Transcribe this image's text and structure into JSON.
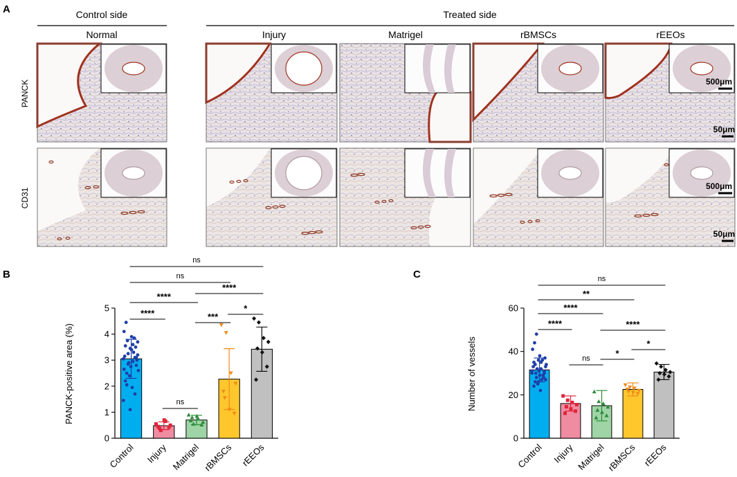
{
  "panels": {
    "a": "A",
    "b": "B",
    "c": "C"
  },
  "headers": {
    "control_side": "Control side",
    "treated_side": "Treated side",
    "groups": [
      "Normal",
      "Injury",
      "Matrigel",
      "rBMSCs",
      "rEEOs"
    ]
  },
  "rows": [
    "PANCK",
    "CD31"
  ],
  "scale_bars": {
    "large": "500μm",
    "small": "50μm"
  },
  "colors": {
    "Control": "#00aeef",
    "Injury": "#f08ca2",
    "Matrigel": "#9ed4a6",
    "rBMSCs": "#ffc72c",
    "rEEOs": "#c0c0c0",
    "Control_pt": "#1f3fa8",
    "Injury_pt": "#e0253a",
    "Matrigel_pt": "#2e8b3c",
    "rBMSCs_pt": "#f28a1a",
    "rEEOs_pt": "#111111"
  },
  "chart_data": [
    {
      "type": "bar",
      "panel": "B",
      "categories": [
        "Control",
        "Injury",
        "Matrigel",
        "rBMSCs",
        "rEEOs"
      ],
      "values": [
        3.05,
        0.48,
        0.7,
        2.27,
        3.42
      ],
      "errors": [
        0.75,
        0.15,
        0.18,
        1.17,
        0.85
      ],
      "ylabel": "PANCK-positive area (%)",
      "ylim": [
        0,
        5
      ],
      "yticks": [
        "0",
        "1",
        "2",
        "3",
        "4",
        "5"
      ],
      "points": [
        [
          3.05,
          2.85,
          3.6,
          3.2,
          2.5,
          3.9,
          3.1,
          2.2,
          3.45,
          1.7,
          4.1,
          2.9,
          3.3,
          2.6,
          3.75,
          1.95,
          3.0,
          4.45,
          2.75,
          3.5,
          3.15,
          2.4,
          3.85,
          1.45,
          3.25,
          2.95,
          3.7,
          2.05,
          3.4,
          2.8,
          3.55,
          1.1,
          3.1,
          2.65
        ],
        [
          0.55,
          0.3,
          0.65,
          0.5,
          0.38,
          0.7,
          0.42,
          0.45
        ],
        [
          0.9,
          0.55,
          0.75,
          0.62,
          0.8,
          0.85,
          0.52,
          0.68
        ],
        [
          4.35,
          4.05,
          2.5,
          2.1,
          1.55,
          1.1,
          0.95,
          1.8
        ],
        [
          4.6,
          4.45,
          3.85,
          3.7,
          3.45,
          3.3,
          2.75,
          2.25
        ]
      ],
      "comparisons": [
        {
          "from": 0,
          "to": 4,
          "label": "ns"
        },
        {
          "from": 0,
          "to": 3,
          "label": "ns"
        },
        {
          "from": 0,
          "to": 2,
          "label": "****"
        },
        {
          "from": 2,
          "to": 4,
          "label": "****"
        },
        {
          "from": 0,
          "to": 1,
          "label": "****"
        },
        {
          "from": 3,
          "to": 4,
          "label": "*"
        },
        {
          "from": 2,
          "to": 3,
          "label": "***"
        },
        {
          "from": 1,
          "to": 2,
          "label": "ns"
        }
      ]
    },
    {
      "type": "bar",
      "panel": "C",
      "categories": [
        "Control",
        "Injury",
        "Matrigel",
        "rBMSCs",
        "rEEOs"
      ],
      "values": [
        31.5,
        16.0,
        15.0,
        22.5,
        30.5
      ],
      "errors": [
        5.5,
        3.5,
        7.0,
        3.0,
        3.5
      ],
      "ylabel": "Number of vessels",
      "ylim": [
        0,
        60
      ],
      "yticks": [
        "0",
        "20",
        "40",
        "60"
      ],
      "points": [
        [
          31,
          28,
          35,
          33,
          26,
          38,
          30,
          24,
          36,
          29,
          41,
          32,
          27,
          34,
          30,
          22,
          37,
          44,
          31,
          28,
          33,
          25,
          36,
          30,
          48,
          32,
          27,
          34,
          29,
          31,
          35,
          26
        ],
        [
          19.5,
          17.5,
          16.5,
          15.5,
          14.5,
          13.5,
          12.5,
          11.5
        ],
        [
          21.5,
          17.0,
          16.0,
          14.5,
          13.0,
          12.0,
          10.5,
          9.5
        ],
        [
          24.5,
          23.5,
          23.0,
          22.0,
          21.5,
          21.0,
          20.5,
          22.5
        ],
        [
          34.5,
          33.0,
          31.5,
          30.5,
          30.0,
          29.5,
          28.5,
          27.0
        ]
      ],
      "comparisons": [
        {
          "from": 0,
          "to": 4,
          "label": "ns"
        },
        {
          "from": 0,
          "to": 3,
          "label": "**"
        },
        {
          "from": 0,
          "to": 2,
          "label": "****"
        },
        {
          "from": 0,
          "to": 1,
          "label": "****"
        },
        {
          "from": 2,
          "to": 4,
          "label": "****"
        },
        {
          "from": 1,
          "to": 2,
          "label": "ns"
        },
        {
          "from": 2,
          "to": 3,
          "label": "*"
        },
        {
          "from": 3,
          "to": 4,
          "label": "*"
        }
      ]
    }
  ]
}
